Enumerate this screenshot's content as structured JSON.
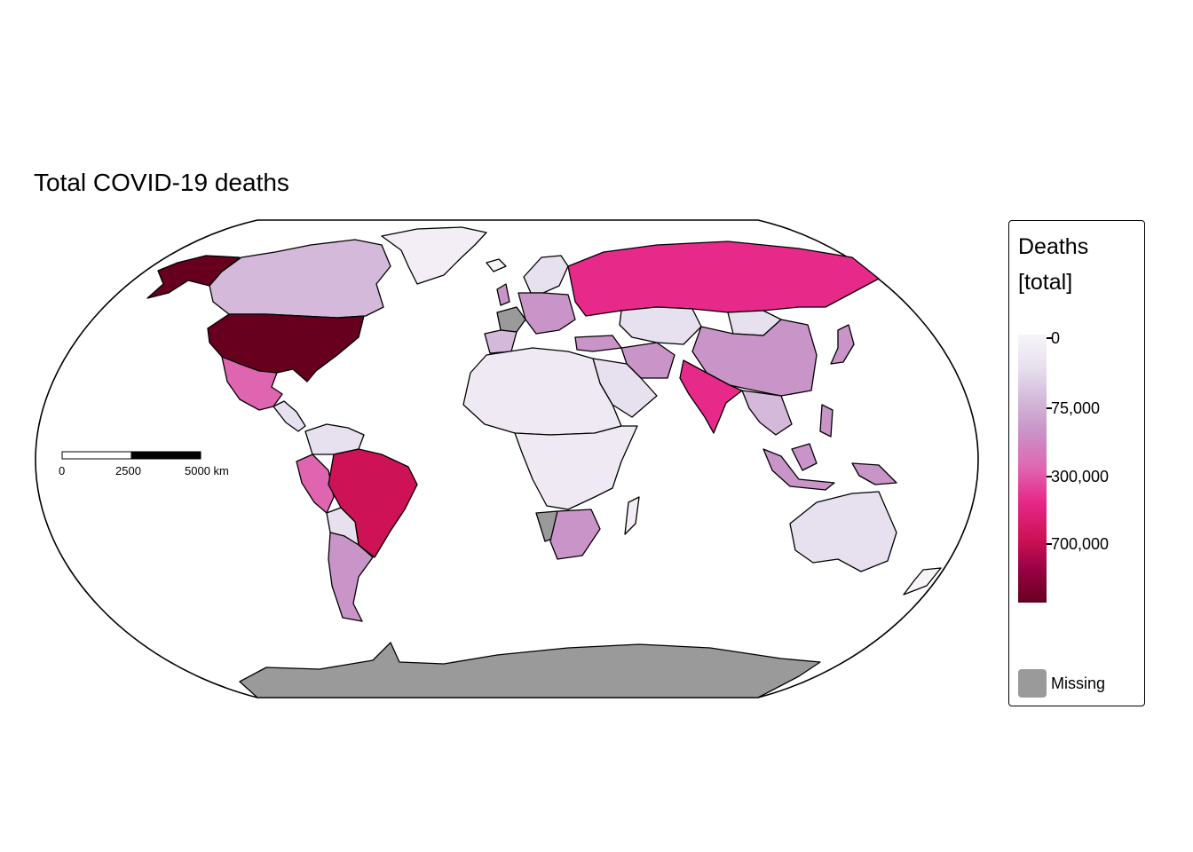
{
  "map": {
    "title": "Total COVID-19 deaths",
    "projection": "robinson",
    "missing_color": "#9a9a9a",
    "ocean_color": "#ffffff",
    "border_color": "#000000"
  },
  "legend": {
    "title_line1": "Deaths",
    "title_line2": "[total]",
    "ticks": [
      {
        "label": "0",
        "value": 0
      },
      {
        "label": "75,000",
        "value": 75000
      },
      {
        "label": "300,000",
        "value": 300000
      },
      {
        "label": "700,000",
        "value": 700000
      }
    ],
    "palette": [
      "#f7f4f9",
      "#e7e1ef",
      "#d4b9da",
      "#c994c7",
      "#df65b0",
      "#e7298a",
      "#ce1256",
      "#980043",
      "#67001f"
    ],
    "missing_label": "Missing"
  },
  "scale_bar": {
    "labels": [
      "0",
      "2500",
      "5000 km"
    ]
  }
}
